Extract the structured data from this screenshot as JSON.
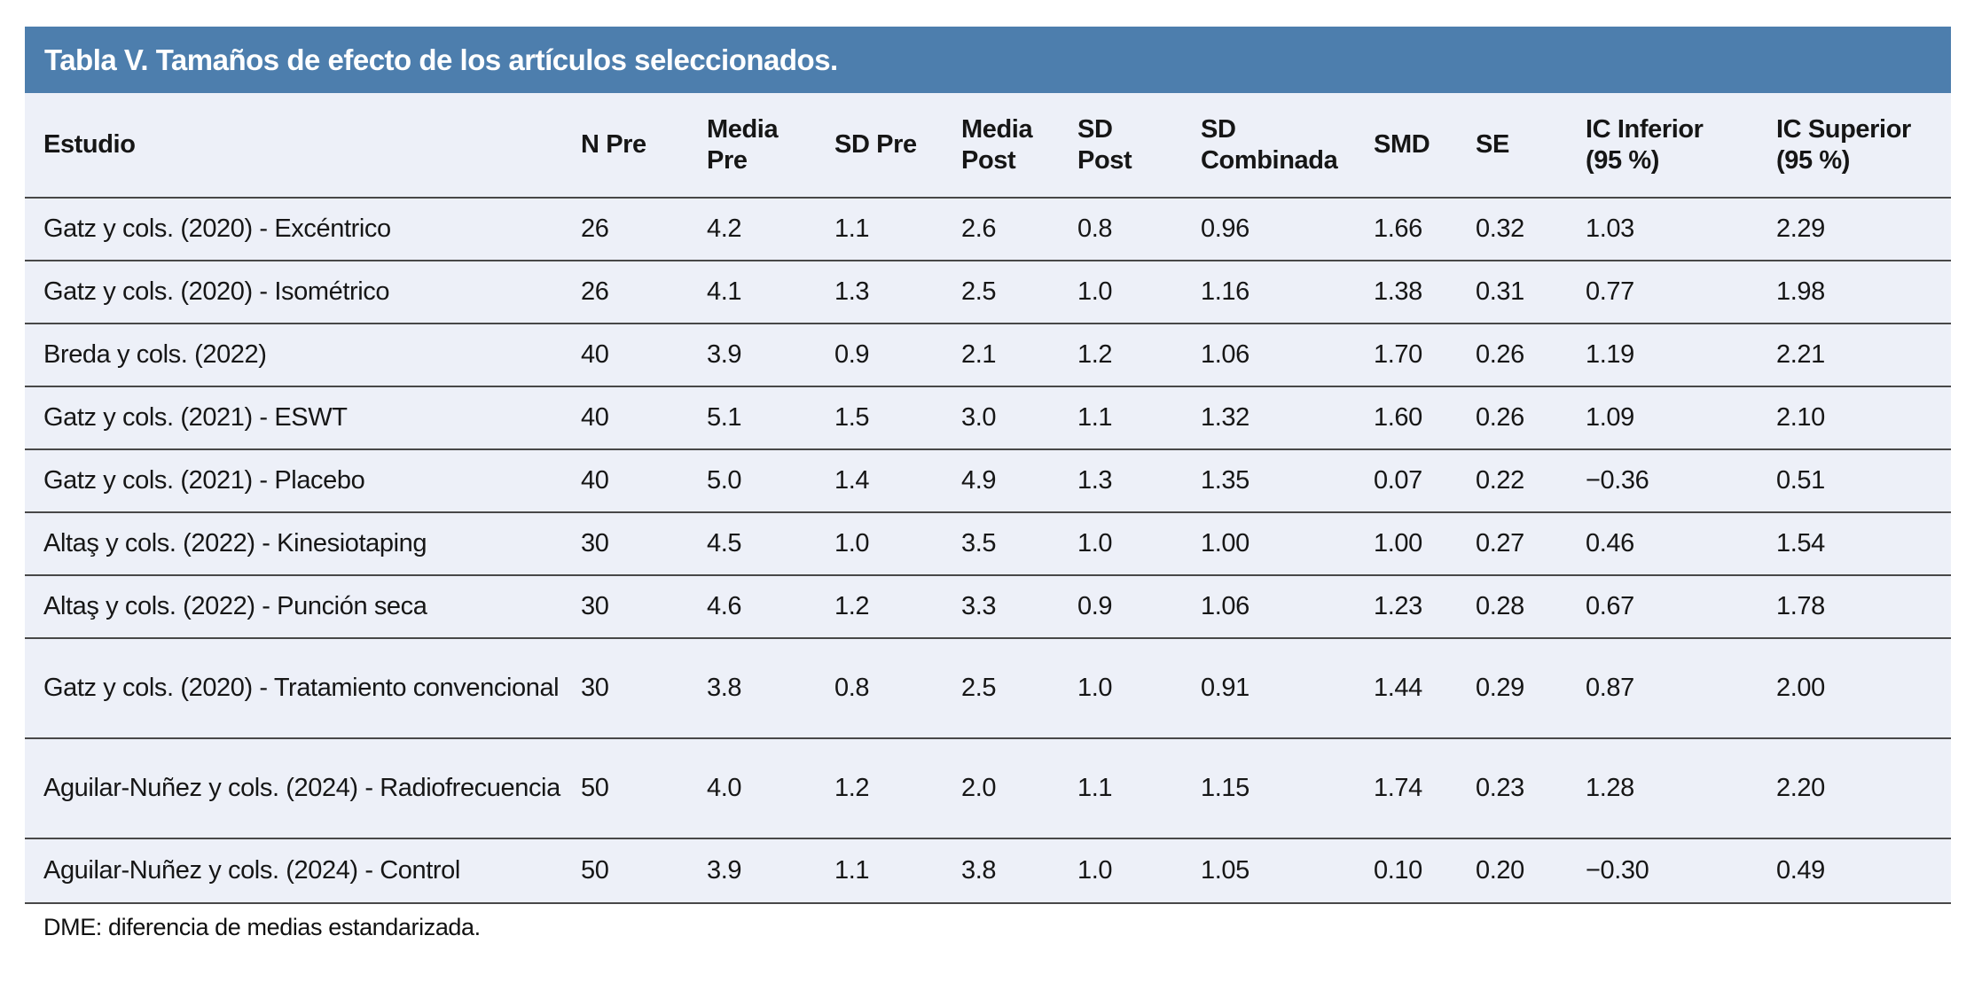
{
  "table": {
    "title": "Tabla V. Tamaños de efecto de los artículos seleccionados.",
    "columns": [
      "Estudio",
      "N Pre",
      "Media\nPre",
      "SD Pre",
      "Media\nPost",
      "SD\nPost",
      "SD\nCombinada",
      "SMD",
      "SE",
      "IC Inferior\n(95 %)",
      "IC Superior\n(95 %)"
    ],
    "rows": [
      [
        "Gatz y cols. (2020) - Excéntrico",
        "26",
        "4.2",
        "1.1",
        "2.6",
        "0.8",
        "0.96",
        "1.66",
        "0.32",
        "1.03",
        "2.29"
      ],
      [
        "Gatz y cols. (2020) - Isométrico",
        "26",
        "4.1",
        "1.3",
        "2.5",
        "1.0",
        "1.16",
        "1.38",
        "0.31",
        "0.77",
        "1.98"
      ],
      [
        "Breda y cols. (2022)",
        "40",
        "3.9",
        "0.9",
        "2.1",
        "1.2",
        "1.06",
        "1.70",
        "0.26",
        "1.19",
        "2.21"
      ],
      [
        "Gatz y cols. (2021) - ESWT",
        "40",
        "5.1",
        "1.5",
        "3.0",
        "1.1",
        "1.32",
        "1.60",
        "0.26",
        "1.09",
        "2.10"
      ],
      [
        "Gatz y cols. (2021) - Placebo",
        "40",
        "5.0",
        "1.4",
        "4.9",
        "1.3",
        "1.35",
        "0.07",
        "0.22",
        "−0.36",
        "0.51"
      ],
      [
        "Altaş y cols. (2022) - Kinesiotaping",
        "30",
        "4.5",
        "1.0",
        "3.5",
        "1.0",
        "1.00",
        "1.00",
        "0.27",
        "0.46",
        "1.54"
      ],
      [
        "Altaş y cols. (2022) - Punción seca",
        "30",
        "4.6",
        "1.2",
        "3.3",
        "0.9",
        "1.06",
        "1.23",
        "0.28",
        "0.67",
        "1.78"
      ],
      [
        "Gatz y cols. (2020) - Tratamiento convencional",
        "30",
        "3.8",
        "0.8",
        "2.5",
        "1.0",
        "0.91",
        "1.44",
        "0.29",
        "0.87",
        "2.00"
      ],
      [
        "Aguilar-Nuñez y cols. (2024) - Radiofrecuencia",
        "50",
        "4.0",
        "1.2",
        "2.0",
        "1.1",
        "1.15",
        "1.74",
        "0.23",
        "1.28",
        "2.20"
      ],
      [
        "Aguilar-Nuñez y cols. (2024) - Control",
        "50",
        "3.9",
        "1.1",
        "3.8",
        "1.0",
        "1.05",
        "0.10",
        "0.20",
        "−0.30",
        "0.49"
      ]
    ],
    "footnote": "DME: diferencia de medias estandarizada.",
    "colors": {
      "title_bg": "#4d7ead",
      "title_text": "#ffffff",
      "body_bg": "#edf0f8",
      "divider": "#484848"
    }
  }
}
